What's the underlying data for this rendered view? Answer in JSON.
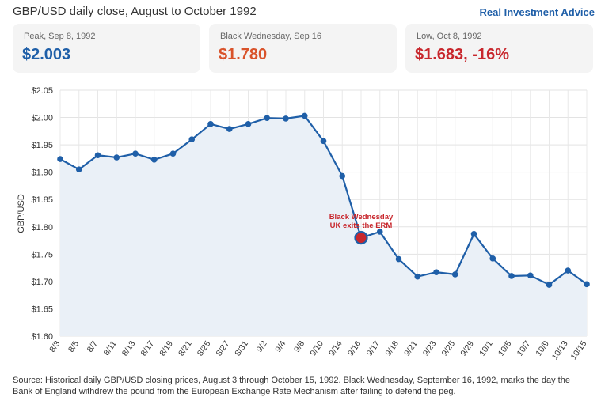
{
  "header": {
    "title": "GBP/USD daily close, August to October 1992",
    "brand": "Real Investment Advice"
  },
  "cards": [
    {
      "label": "Peak, Sep 8, 1992",
      "value": "$2.003",
      "color": "#1f5fa8"
    },
    {
      "label": "Black Wednesday, Sep 16",
      "value": "$1.780",
      "color": "#d9532b"
    },
    {
      "label": "Low, Oct 8, 1992",
      "value": "$1.683, -16%",
      "color": "#c8272d"
    }
  ],
  "chart_data": {
    "type": "area",
    "ylabel": "GBP/USD",
    "ylim": [
      1.6,
      2.05
    ],
    "yticks": [
      1.6,
      1.65,
      1.7,
      1.75,
      1.8,
      1.85,
      1.9,
      1.95,
      2.0,
      2.05
    ],
    "ytick_labels": [
      "$1.60",
      "$1.65",
      "$1.70",
      "$1.75",
      "$1.80",
      "$1.85",
      "$1.90",
      "$1.95",
      "$2.00",
      "$2.05"
    ],
    "categories": [
      "8/3",
      "8/5",
      "8/7",
      "8/11",
      "8/13",
      "8/17",
      "8/19",
      "8/21",
      "8/25",
      "8/27",
      "8/31",
      "9/2",
      "9/4",
      "9/8",
      "9/10",
      "9/14",
      "9/16",
      "9/17",
      "9/18",
      "9/21",
      "9/23",
      "9/25",
      "9/29",
      "10/1",
      "10/5",
      "10/7",
      "10/9",
      "10/13",
      "10/15"
    ],
    "values": [
      1.924,
      1.905,
      1.931,
      1.927,
      1.934,
      1.923,
      1.934,
      1.96,
      1.988,
      1.979,
      1.988,
      1.999,
      1.998,
      2.003,
      1.957,
      1.893,
      1.78,
      1.791,
      1.741,
      1.709,
      1.717,
      1.713,
      1.787,
      1.742,
      1.71,
      1.711,
      1.694,
      1.72,
      1.695
    ],
    "line_color": "#1f5fa8",
    "fill_color": "#eaf0f7",
    "grid": true,
    "highlight": {
      "category": "9/16",
      "color": "#c8272d"
    },
    "annotation": {
      "category": "9/16",
      "lines": [
        "Black Wednesday",
        "UK exits the ERM"
      ],
      "color": "#c8272d"
    }
  },
  "footer": {
    "source": "Source: Historical daily GBP/USD closing prices, August 3 through October 15, 1992. Black Wednesday, September 16, 1992, marks the day the Bank of England withdrew the pound from the European Exchange Rate Mechanism after failing to defend the peg."
  }
}
